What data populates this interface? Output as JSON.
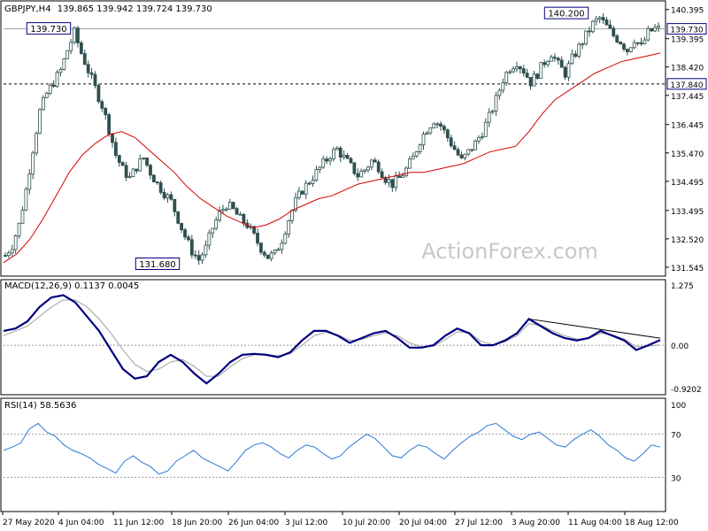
{
  "chart_data": [
    {
      "type": "candlestick",
      "title": "GBPJPY,H4",
      "ohlc_header": "139.865 139.942 139.724 139.730",
      "yticks": [
        "140.395",
        "139.395",
        "138.420",
        "137.445",
        "136.445",
        "135.470",
        "134.495",
        "133.495",
        "132.520",
        "131.545"
      ],
      "ylim": [
        131.3,
        140.6
      ],
      "price_series": [
        131.95,
        132.3,
        133.0,
        134.2,
        135.6,
        136.9,
        137.5,
        137.9,
        138.3,
        139.0,
        139.6,
        138.9,
        138.3,
        137.7,
        137.1,
        136.3,
        135.4,
        134.9,
        134.6,
        135.0,
        135.3,
        134.8,
        134.4,
        134.1,
        133.8,
        133.2,
        132.6,
        132.1,
        131.8,
        132.2,
        132.9,
        133.4,
        133.7,
        133.5,
        133.2,
        133.0,
        132.6,
        132.2,
        131.9,
        132.0,
        132.5,
        133.2,
        133.8,
        134.2,
        134.5,
        134.8,
        135.1,
        135.4,
        135.6,
        135.3,
        135.0,
        134.7,
        134.9,
        135.2,
        135.0,
        134.6,
        134.4,
        134.6,
        134.9,
        135.3,
        135.9,
        136.3,
        136.6,
        136.4,
        136.0,
        135.6,
        135.2,
        135.5,
        135.8,
        136.2,
        136.7,
        137.3,
        138.0,
        138.4,
        138.6,
        138.3,
        137.9,
        138.2,
        138.6,
        138.9,
        138.5,
        138.2,
        138.7,
        139.1,
        139.5,
        139.9,
        140.1,
        139.8,
        139.5,
        139.3,
        139.0,
        139.4,
        139.1,
        139.6,
        139.73
      ],
      "ma_series": [
        131.7,
        132.0,
        132.5,
        133.2,
        134.0,
        134.8,
        135.4,
        135.8,
        136.1,
        136.2,
        136.0,
        135.6,
        135.2,
        134.8,
        134.3,
        133.9,
        133.6,
        133.3,
        133.1,
        132.9,
        133.0,
        133.2,
        133.5,
        133.7,
        133.9,
        134.0,
        134.2,
        134.4,
        134.5,
        134.6,
        134.7,
        134.8,
        134.8,
        134.9,
        135.0,
        135.1,
        135.3,
        135.5,
        135.6,
        135.7,
        136.2,
        136.8,
        137.3,
        137.6,
        137.9,
        138.2,
        138.4,
        138.6,
        138.7,
        138.8,
        138.9
      ],
      "highlighted_levels": [
        {
          "label": "140.200",
          "value": 140.2
        },
        {
          "label": "139.730",
          "value": 139.73
        },
        {
          "label": "137.840",
          "value": 137.84
        },
        {
          "label": "131.680",
          "value": 131.68
        }
      ],
      "last_price_label": "139.730",
      "support_label": "137.840",
      "watermark": "ActionForex.com"
    },
    {
      "type": "line",
      "title": "MACD(12,26,9) 0.1137 0.0045",
      "yticks": [
        "1.275",
        "0.00",
        "-0.9202"
      ],
      "ylim": [
        -1.0,
        1.3
      ],
      "macd": [
        0.3,
        0.35,
        0.5,
        0.8,
        1.0,
        1.05,
        0.9,
        0.6,
        0.3,
        -0.1,
        -0.5,
        -0.7,
        -0.65,
        -0.35,
        -0.2,
        -0.35,
        -0.6,
        -0.8,
        -0.6,
        -0.35,
        -0.2,
        -0.18,
        -0.2,
        -0.25,
        -0.15,
        0.1,
        0.3,
        0.3,
        0.2,
        0.05,
        0.15,
        0.25,
        0.3,
        0.15,
        -0.05,
        -0.05,
        0.0,
        0.2,
        0.35,
        0.25,
        0.0,
        0.0,
        0.1,
        0.25,
        0.55,
        0.4,
        0.25,
        0.15,
        0.1,
        0.15,
        0.3,
        0.2,
        0.1,
        -0.1,
        0.0,
        0.11
      ],
      "signal": [
        0.2,
        0.3,
        0.4,
        0.6,
        0.8,
        0.95,
        0.95,
        0.8,
        0.55,
        0.25,
        -0.1,
        -0.4,
        -0.55,
        -0.5,
        -0.35,
        -0.3,
        -0.45,
        -0.65,
        -0.65,
        -0.45,
        -0.28,
        -0.2,
        -0.2,
        -0.22,
        -0.18,
        0.0,
        0.2,
        0.27,
        0.22,
        0.1,
        0.12,
        0.2,
        0.26,
        0.2,
        0.05,
        -0.03,
        -0.02,
        0.12,
        0.28,
        0.27,
        0.08,
        0.01,
        0.07,
        0.2,
        0.45,
        0.42,
        0.3,
        0.2,
        0.13,
        0.14,
        0.25,
        0.22,
        0.13,
        -0.03,
        -0.02,
        0.005
      ],
      "trendline": "descending"
    },
    {
      "type": "line",
      "title": "RSI(14) 58.5636",
      "yticks": [
        "100",
        "70",
        "30"
      ],
      "ylim": [
        0,
        100
      ],
      "rsi": [
        55,
        58,
        62,
        75,
        80,
        72,
        68,
        60,
        55,
        52,
        48,
        42,
        38,
        34,
        45,
        50,
        44,
        40,
        33,
        36,
        45,
        50,
        55,
        48,
        44,
        40,
        36,
        45,
        55,
        60,
        62,
        58,
        52,
        48,
        55,
        60,
        58,
        52,
        47,
        50,
        58,
        64,
        70,
        66,
        58,
        50,
        48,
        55,
        60,
        58,
        52,
        47,
        55,
        62,
        68,
        72,
        78,
        80,
        74,
        68,
        65,
        70,
        72,
        66,
        60,
        58,
        65,
        70,
        74,
        68,
        60,
        55,
        48,
        45,
        52,
        60,
        58
      ],
      "levels": [
        70,
        30
      ]
    }
  ],
  "x_labels": [
    "27 May 2020",
    "4 Jun 04:00",
    "11 Jun 12:00",
    "18 Jun 20:00",
    "26 Jun 04:00",
    "3 Jul 12:00",
    "10 Jul 20:00",
    "20 Jul 04:00",
    "27 Jul 12:00",
    "3 Aug 20:00",
    "11 Aug 04:00",
    "18 Aug 12:00"
  ],
  "colors": {
    "candles": "#2f4f4f",
    "ma": "#d40000",
    "macd": "#000080",
    "signal": "#a0a0a0",
    "rsi": "#2a78d8",
    "watermark": "#c8c8c8",
    "last_price_box": "#000080"
  }
}
